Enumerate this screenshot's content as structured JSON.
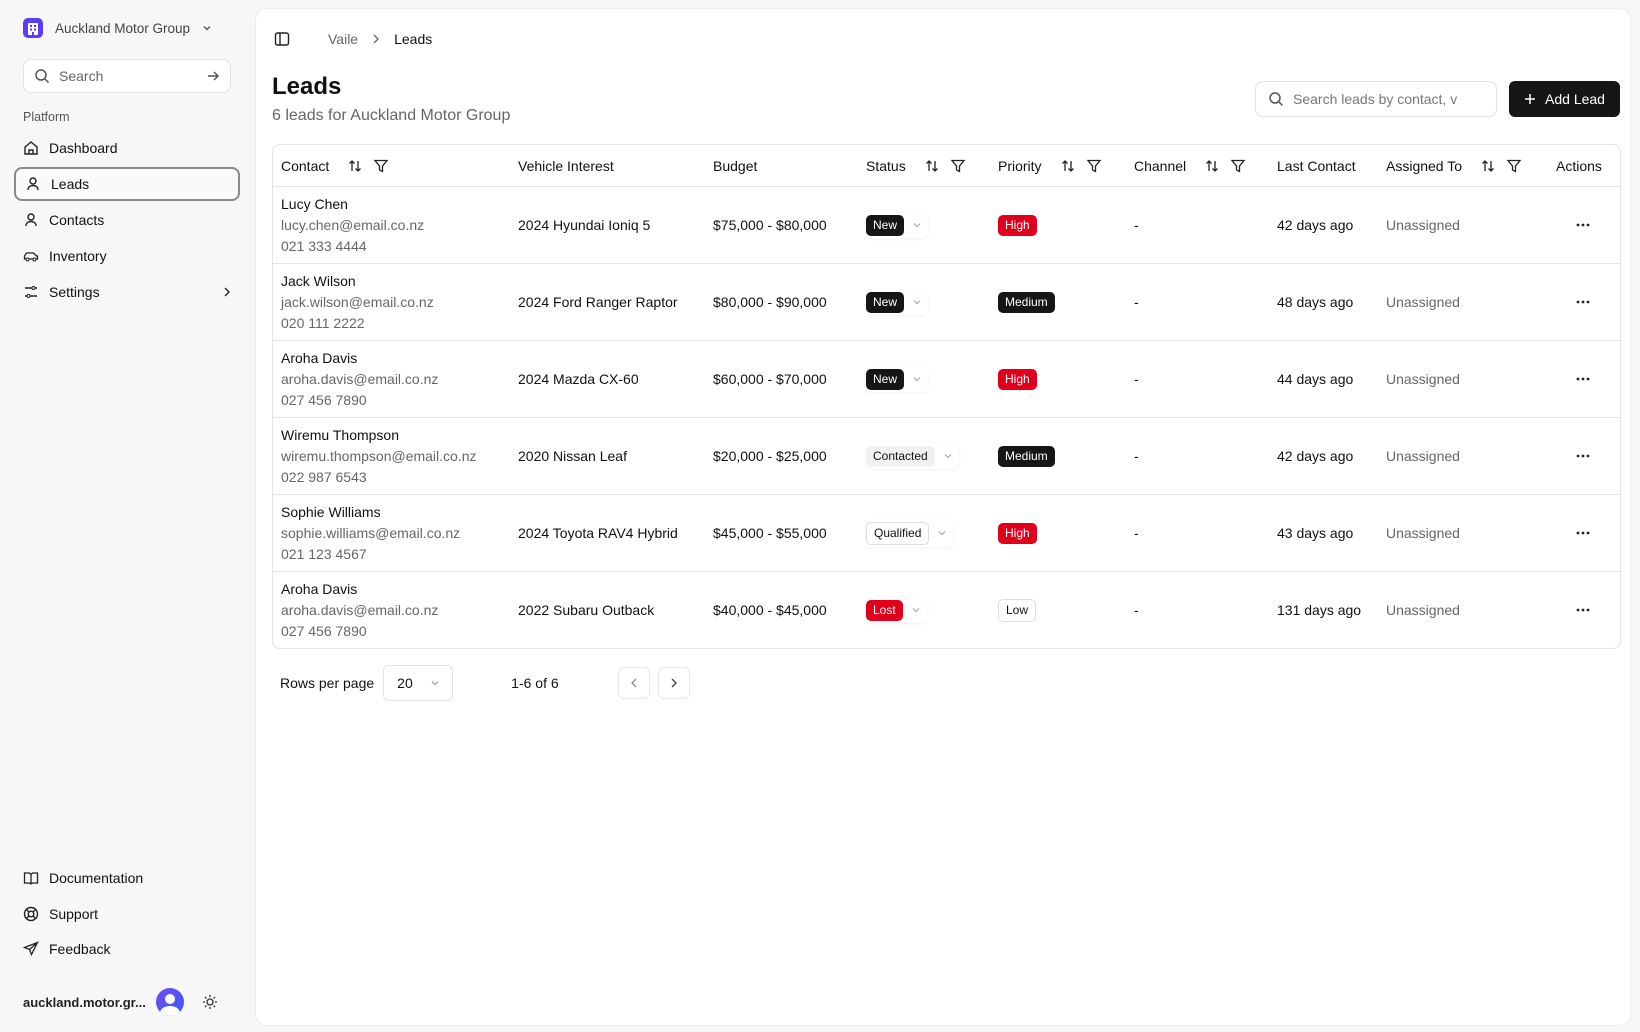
{
  "sidebar": {
    "org_name": "Auckland Motor Group",
    "search_placeholder": "Search",
    "section_label": "Platform",
    "nav": [
      {
        "label": "Dashboard",
        "icon": "home-icon"
      },
      {
        "label": "Leads",
        "icon": "user-icon",
        "active": true
      },
      {
        "label": "Contacts",
        "icon": "user-icon"
      },
      {
        "label": "Inventory",
        "icon": "car-icon"
      },
      {
        "label": "Settings",
        "icon": "sliders-icon"
      }
    ],
    "footer_nav": [
      {
        "label": "Documentation",
        "icon": "book-icon"
      },
      {
        "label": "Support",
        "icon": "lifebuoy-icon"
      },
      {
        "label": "Feedback",
        "icon": "send-icon"
      }
    ],
    "user": "auckland.motor.gr..."
  },
  "breadcrumb": [
    "Vaile",
    "Leads"
  ],
  "header": {
    "title": "Leads",
    "subtitle": "6 leads for Auckland Motor Group",
    "search_placeholder": "Search leads by contact, v",
    "add_label": "Add Lead"
  },
  "table": {
    "columns": [
      "Contact",
      "Vehicle Interest",
      "Budget",
      "Status",
      "Priority",
      "Channel",
      "Last Contact",
      "Assigned To",
      "Actions"
    ],
    "rows": [
      {
        "name": "Lucy Chen",
        "email": "lucy.chen@email.co.nz",
        "phone": "021 333 4444",
        "vehicle": "2024 Hyundai Ioniq 5",
        "budget": "$75,000 - $80,000",
        "status": "New",
        "priority": "High",
        "channel": "-",
        "last": "42 days ago",
        "assigned": "Unassigned"
      },
      {
        "name": "Jack Wilson",
        "email": "jack.wilson@email.co.nz",
        "phone": "020 111 2222",
        "vehicle": "2024 Ford Ranger Raptor",
        "budget": "$80,000 - $90,000",
        "status": "New",
        "priority": "Medium",
        "channel": "-",
        "last": "48 days ago",
        "assigned": "Unassigned"
      },
      {
        "name": "Aroha Davis",
        "email": "aroha.davis@email.co.nz",
        "phone": "027 456 7890",
        "vehicle": "2024 Mazda CX-60",
        "budget": "$60,000 - $70,000",
        "status": "New",
        "priority": "High",
        "channel": "-",
        "last": "44 days ago",
        "assigned": "Unassigned"
      },
      {
        "name": "Wiremu Thompson",
        "email": "wiremu.thompson@email.co.nz",
        "phone": "022 987 6543",
        "vehicle": "2020 Nissan Leaf",
        "budget": "$20,000 - $25,000",
        "status": "Contacted",
        "priority": "Medium",
        "channel": "-",
        "last": "42 days ago",
        "assigned": "Unassigned"
      },
      {
        "name": "Sophie Williams",
        "email": "sophie.williams@email.co.nz",
        "phone": "021 123 4567",
        "vehicle": "2024 Toyota RAV4 Hybrid",
        "budget": "$45,000 - $55,000",
        "status": "Qualified",
        "priority": "High",
        "channel": "-",
        "last": "43 days ago",
        "assigned": "Unassigned"
      },
      {
        "name": "Aroha Davis",
        "email": "aroha.davis@email.co.nz",
        "phone": "027 456 7890",
        "vehicle": "2022 Subaru Outback",
        "budget": "$40,000 - $45,000",
        "status": "Lost",
        "priority": "Low",
        "channel": "-",
        "last": "131 days ago",
        "assigned": "Unassigned"
      }
    ]
  },
  "pagination": {
    "rows_per_page_label": "Rows per page",
    "rows_per_page": "20",
    "range": "1-6 of 6"
  },
  "colors": {
    "brand": "#5b3df5",
    "danger": "#e0001b",
    "dark": "#161616"
  }
}
